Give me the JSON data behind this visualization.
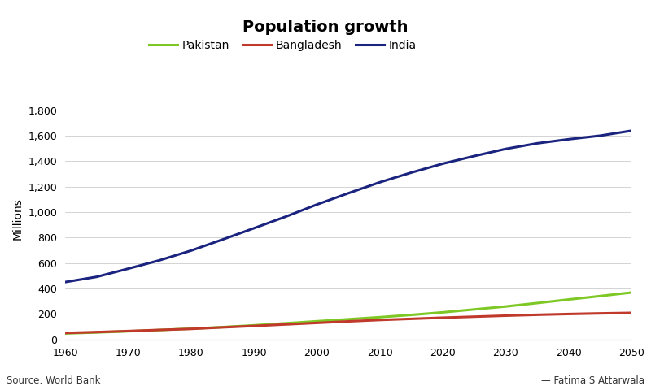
{
  "title": "Population growth",
  "ylabel": "Millions",
  "source_text": "Source: World Bank",
  "author_text": "— Fatima S Attarwala",
  "xlim": [
    1960,
    2050
  ],
  "ylim": [
    0,
    1900
  ],
  "yticks": [
    0,
    200,
    400,
    600,
    800,
    1000,
    1200,
    1400,
    1600,
    1800
  ],
  "xticks": [
    1960,
    1970,
    1980,
    1990,
    2000,
    2010,
    2020,
    2030,
    2040,
    2050
  ],
  "series": {
    "Pakistan": {
      "color": "#7ec825",
      "years": [
        1960,
        1965,
        1970,
        1975,
        1980,
        1985,
        1990,
        1995,
        2000,
        2005,
        2010,
        2015,
        2020,
        2025,
        2030,
        2035,
        2040,
        2045,
        2050
      ],
      "values": [
        46,
        54,
        63,
        73,
        84,
        96,
        110,
        126,
        142,
        158,
        174,
        192,
        212,
        235,
        258,
        285,
        313,
        340,
        368
      ]
    },
    "Bangladesh": {
      "color": "#c0392b",
      "years": [
        1960,
        1965,
        1970,
        1975,
        1980,
        1985,
        1990,
        1995,
        2000,
        2005,
        2010,
        2015,
        2020,
        2025,
        2030,
        2035,
        2040,
        2045,
        2050
      ],
      "values": [
        50,
        57,
        65,
        74,
        82,
        94,
        105,
        117,
        129,
        141,
        152,
        161,
        170,
        178,
        186,
        193,
        199,
        204,
        208
      ]
    },
    "India": {
      "color": "#1a237e",
      "years": [
        1960,
        1965,
        1970,
        1975,
        1980,
        1985,
        1990,
        1995,
        2000,
        2005,
        2010,
        2015,
        2020,
        2025,
        2030,
        2035,
        2040,
        2045,
        2050
      ],
      "values": [
        450,
        491,
        555,
        621,
        697,
        784,
        873,
        963,
        1059,
        1148,
        1234,
        1310,
        1380,
        1440,
        1496,
        1540,
        1572,
        1600,
        1639
      ]
    }
  },
  "legend_order": [
    "Pakistan",
    "Bangladesh",
    "India"
  ],
  "background_color": "#ffffff",
  "title_fontsize": 14,
  "label_fontsize": 10,
  "tick_fontsize": 9,
  "legend_fontsize": 10,
  "linewidth": 2.2
}
